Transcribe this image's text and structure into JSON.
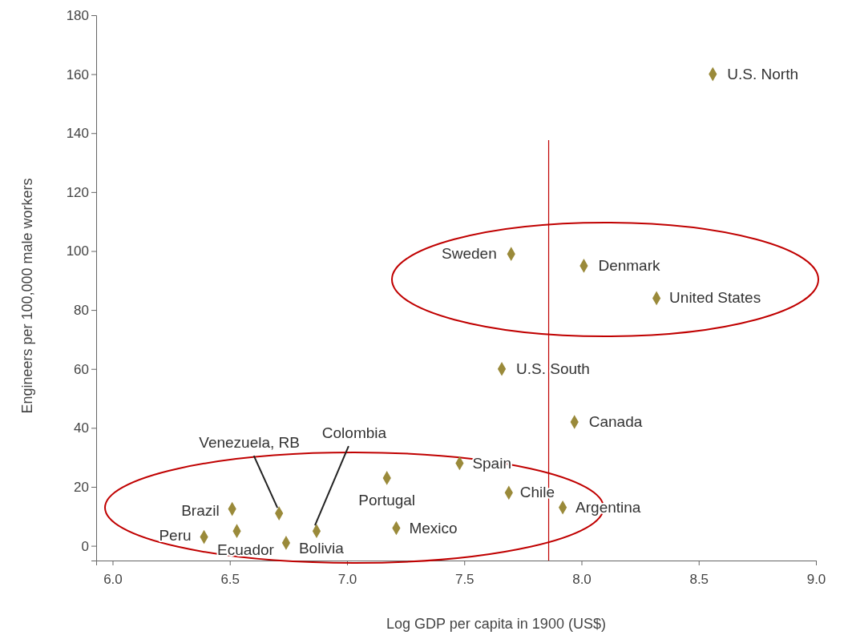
{
  "chart_data": {
    "type": "scatter",
    "xlabel": "Log GDP per capita in 1900 (US$)",
    "ylabel": "Engineers per 100,000 male workers",
    "x": [
      8.56,
      7.7,
      8.01,
      8.32,
      7.66,
      7.97,
      7.48,
      7.17,
      7.69,
      7.92,
      7.21,
      6.51,
      6.71,
      6.87,
      6.53,
      6.39,
      6.74
    ],
    "series": [
      {
        "color": "#9a8a3a",
        "values": [
          160,
          99,
          95,
          84,
          60,
          42,
          28,
          23,
          18,
          13,
          6,
          12.5,
          11,
          5,
          5,
          3,
          1
        ]
      }
    ],
    "marker": "diamond",
    "grid": false,
    "xlim": [
      5.93,
      9.0
    ],
    "xticks": [
      {
        "value": 6,
        "label": "6.0"
      },
      {
        "value": 6.5,
        "label": "6.5"
      },
      {
        "value": 7,
        "label": "7.0"
      },
      {
        "value": 7.5,
        "label": "7.5"
      },
      {
        "value": 8,
        "label": "8.0"
      },
      {
        "value": 8.5,
        "label": "8.5"
      },
      {
        "value": 9,
        "label": "9.0"
      }
    ],
    "ylim": [
      -5,
      180
    ],
    "yticks": [
      0,
      20,
      40,
      60,
      80,
      100,
      120,
      140,
      160,
      180
    ],
    "ref_lines": [
      {
        "axis": "x",
        "value": 7.86,
        "color": "#c00000"
      }
    ],
    "annotations": [
      {
        "text": "U.S. North",
        "x": 8.56,
        "y": 160
      },
      {
        "text": "Sweden",
        "x": 7.7,
        "y": 99
      },
      {
        "text": "Denmark",
        "x": 8.01,
        "y": 95
      },
      {
        "text": "United States",
        "x": 8.32,
        "y": 84
      },
      {
        "text": "U.S. South",
        "x": 7.66,
        "y": 60
      },
      {
        "text": "Canada",
        "x": 7.97,
        "y": 42
      },
      {
        "text": "Spain",
        "x": 7.48,
        "y": 28
      },
      {
        "text": "Portugal",
        "x": 7.17,
        "y": 23
      },
      {
        "text": "Chile",
        "x": 7.69,
        "y": 18
      },
      {
        "text": "Argentina",
        "x": 7.92,
        "y": 13
      },
      {
        "text": "Mexico",
        "x": 7.21,
        "y": 6
      },
      {
        "text": "Brazil",
        "x": 6.51,
        "y": 12.5
      },
      {
        "text": "Venezuela, RB",
        "x": 6.71,
        "y": 11
      },
      {
        "text": "Colombia",
        "x": 6.87,
        "y": 5
      },
      {
        "text": "Ecuador",
        "x": 6.53,
        "y": 5
      },
      {
        "text": "Peru",
        "x": 6.39,
        "y": 3
      },
      {
        "text": "Bolivia",
        "x": 6.74,
        "y": 1
      }
    ]
  }
}
